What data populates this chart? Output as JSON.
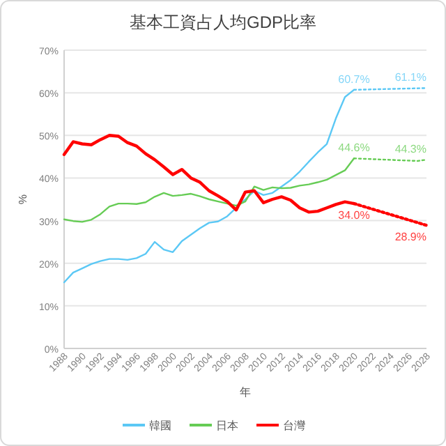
{
  "chart_data": {
    "type": "line",
    "title": "基本工資占人均GDP比率",
    "xlabel": "年",
    "ylabel": "%",
    "xlim": [
      1988,
      2028
    ],
    "xticks": [
      1988,
      1990,
      1992,
      1994,
      1996,
      1998,
      2000,
      2002,
      2004,
      2006,
      2008,
      2010,
      2012,
      2014,
      2016,
      2018,
      2020,
      2022,
      2024,
      2026,
      2028
    ],
    "ylim": [
      0,
      70
    ],
    "yticks": [
      {
        "value": 0,
        "label": "0%"
      },
      {
        "value": 10,
        "label": "10%"
      },
      {
        "value": 20,
        "label": "20%"
      },
      {
        "value": 30,
        "label": "30%"
      },
      {
        "value": 40,
        "label": "40%"
      },
      {
        "value": 50,
        "label": "50%"
      },
      {
        "value": 60,
        "label": "60%"
      },
      {
        "value": 70,
        "label": "70%"
      }
    ],
    "grid": "y",
    "legend": "bottom",
    "x": [
      1988,
      1989,
      1990,
      1991,
      1992,
      1993,
      1994,
      1995,
      1996,
      1997,
      1998,
      1999,
      2000,
      2001,
      2002,
      2003,
      2004,
      2005,
      2006,
      2007,
      2008,
      2009,
      2010,
      2011,
      2012,
      2013,
      2014,
      2015,
      2016,
      2017,
      2018,
      2019,
      2020
    ],
    "series": [
      {
        "name": "韓國",
        "color": "#5bc8f5",
        "values": [
          15.5,
          17.8,
          18.8,
          19.8,
          20.5,
          21,
          21,
          20.8,
          21.2,
          22.2,
          25,
          23.2,
          22.6,
          25.2,
          26.7,
          28.2,
          29.5,
          29.8,
          31,
          33,
          35,
          37,
          36,
          36.5,
          38,
          39.5,
          41.5,
          43.8,
          46,
          48,
          54,
          59,
          60.7
        ]
      },
      {
        "name": "日本",
        "color": "#66cc55",
        "values": [
          30.3,
          29.9,
          29.7,
          30.2,
          31.5,
          33.3,
          34,
          34,
          33.9,
          34.3,
          35.6,
          36.5,
          35.8,
          36,
          36.3,
          35.7,
          35,
          34.5,
          34,
          33.5,
          34.5,
          38,
          37.2,
          37.8,
          37.6,
          37.7,
          38.2,
          38.5,
          39,
          39.6,
          40.7,
          41.8,
          44.6
        ]
      },
      {
        "name": "台灣",
        "color": "#ff0000",
        "values": [
          45.5,
          48.5,
          48,
          47.8,
          49,
          50,
          49.8,
          48.3,
          47.5,
          45.7,
          44.3,
          42.6,
          40.8,
          42,
          40,
          39,
          37,
          35.8,
          34.5,
          32.5,
          36.7,
          37,
          34.2,
          35,
          35.6,
          34.8,
          33,
          32,
          32.2,
          33,
          33.8,
          34.4,
          34.0
        ]
      },
      {
        "color": "#5bc8f5",
        "line_style": "dotted",
        "x": [
          2020,
          2028
        ],
        "values": [
          60.7,
          61.1
        ],
        "value_labels": [
          "60.7%",
          "61.1%"
        ]
      },
      {
        "color": "#66cc55",
        "line_style": "dotted",
        "x": [
          2020,
          2027,
          2028
        ],
        "values": [
          44.6,
          44.0,
          44.3
        ],
        "value_labels": [
          "44.6%",
          null,
          "44.3%"
        ]
      },
      {
        "color": "#ff0000",
        "line_style": "dotted",
        "x": [
          2020,
          2028
        ],
        "values": [
          34.0,
          28.9
        ],
        "value_labels": [
          "34.0%",
          "28.9%"
        ]
      }
    ]
  }
}
